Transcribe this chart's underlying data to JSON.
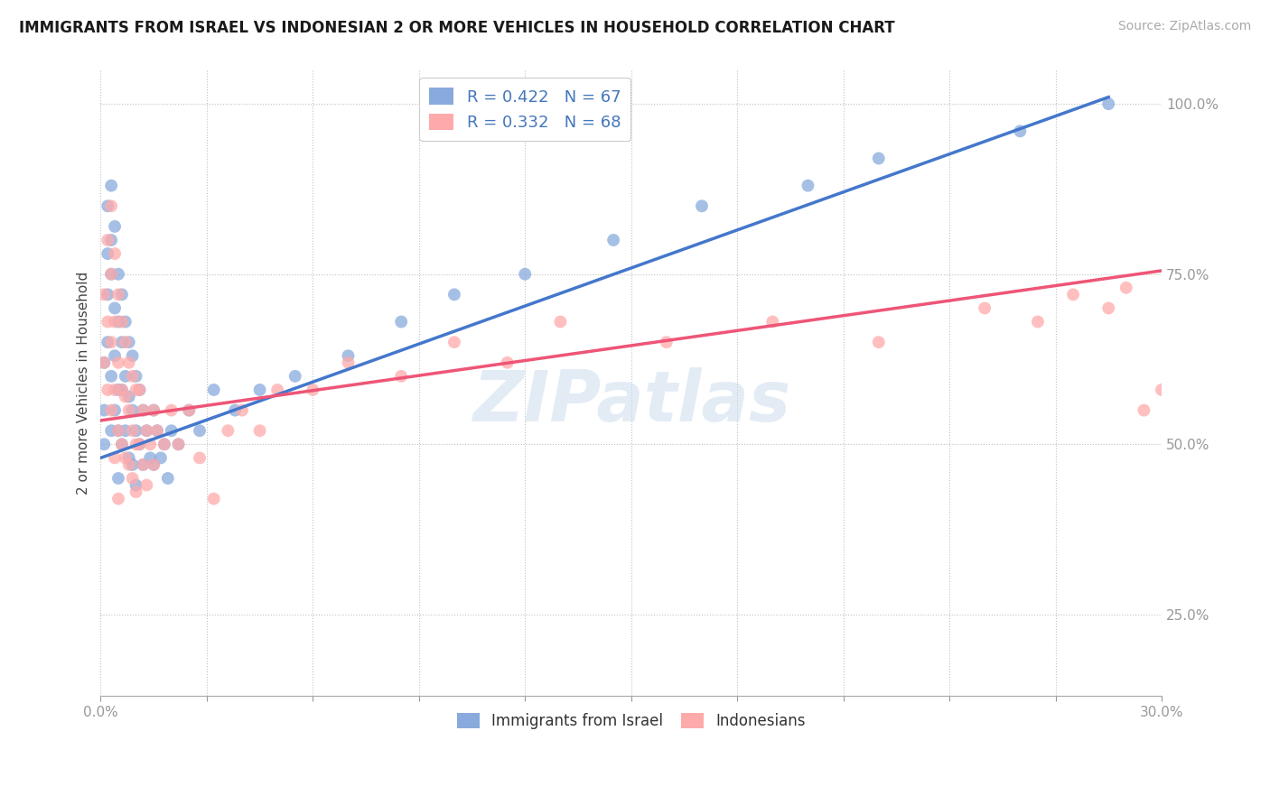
{
  "title": "IMMIGRANTS FROM ISRAEL VS INDONESIAN 2 OR MORE VEHICLES IN HOUSEHOLD CORRELATION CHART",
  "source": "Source: ZipAtlas.com",
  "ylabel": "2 or more Vehicles in Household",
  "xlim": [
    0.0,
    0.3
  ],
  "ylim": [
    0.13,
    1.05
  ],
  "xticks": [
    0.0,
    0.03,
    0.06,
    0.09,
    0.12,
    0.15,
    0.18,
    0.21,
    0.24,
    0.27,
    0.3
  ],
  "xticklabels": [
    "0.0%",
    "",
    "",
    "",
    "",
    "",
    "",
    "",
    "",
    "",
    "30.0%"
  ],
  "ytick_positions": [
    0.25,
    0.5,
    0.75,
    1.0
  ],
  "ytick_labels": [
    "25.0%",
    "50.0%",
    "75.0%",
    "100.0%"
  ],
  "legend_labels": [
    "Immigrants from Israel",
    "Indonesians"
  ],
  "R_israel": 0.422,
  "N_israel": 67,
  "R_indonesian": 0.332,
  "N_indonesian": 68,
  "blue_color": "#88AADD",
  "pink_color": "#FFAAAA",
  "trend_blue": "#4477CC",
  "trend_pink": "#EE5577",
  "watermark": "ZIPatlas",
  "israel_x": [
    0.001,
    0.001,
    0.001,
    0.002,
    0.002,
    0.002,
    0.002,
    0.003,
    0.003,
    0.003,
    0.003,
    0.003,
    0.004,
    0.004,
    0.004,
    0.004,
    0.005,
    0.005,
    0.005,
    0.005,
    0.005,
    0.006,
    0.006,
    0.006,
    0.006,
    0.007,
    0.007,
    0.007,
    0.008,
    0.008,
    0.008,
    0.009,
    0.009,
    0.009,
    0.01,
    0.01,
    0.01,
    0.011,
    0.011,
    0.012,
    0.012,
    0.013,
    0.014,
    0.015,
    0.015,
    0.016,
    0.017,
    0.018,
    0.019,
    0.02,
    0.022,
    0.025,
    0.028,
    0.032,
    0.038,
    0.045,
    0.055,
    0.07,
    0.085,
    0.1,
    0.12,
    0.145,
    0.17,
    0.2,
    0.22,
    0.26,
    0.285
  ],
  "israel_y": [
    0.55,
    0.62,
    0.5,
    0.85,
    0.78,
    0.72,
    0.65,
    0.88,
    0.8,
    0.75,
    0.6,
    0.52,
    0.82,
    0.7,
    0.63,
    0.55,
    0.75,
    0.68,
    0.58,
    0.52,
    0.45,
    0.72,
    0.65,
    0.58,
    0.5,
    0.68,
    0.6,
    0.52,
    0.65,
    0.57,
    0.48,
    0.63,
    0.55,
    0.47,
    0.6,
    0.52,
    0.44,
    0.58,
    0.5,
    0.55,
    0.47,
    0.52,
    0.48,
    0.55,
    0.47,
    0.52,
    0.48,
    0.5,
    0.45,
    0.52,
    0.5,
    0.55,
    0.52,
    0.58,
    0.55,
    0.58,
    0.6,
    0.63,
    0.68,
    0.72,
    0.75,
    0.8,
    0.85,
    0.88,
    0.92,
    0.96,
    1.0
  ],
  "indonesian_x": [
    0.001,
    0.001,
    0.002,
    0.002,
    0.002,
    0.003,
    0.003,
    0.003,
    0.003,
    0.004,
    0.004,
    0.004,
    0.004,
    0.005,
    0.005,
    0.005,
    0.005,
    0.006,
    0.006,
    0.006,
    0.007,
    0.007,
    0.007,
    0.008,
    0.008,
    0.008,
    0.009,
    0.009,
    0.009,
    0.01,
    0.01,
    0.01,
    0.011,
    0.011,
    0.012,
    0.012,
    0.013,
    0.013,
    0.014,
    0.015,
    0.015,
    0.016,
    0.018,
    0.02,
    0.022,
    0.025,
    0.028,
    0.032,
    0.036,
    0.04,
    0.045,
    0.05,
    0.06,
    0.07,
    0.085,
    0.1,
    0.115,
    0.13,
    0.16,
    0.19,
    0.22,
    0.25,
    0.265,
    0.275,
    0.285,
    0.29,
    0.295,
    0.3
  ],
  "indonesian_y": [
    0.72,
    0.62,
    0.8,
    0.68,
    0.58,
    0.85,
    0.75,
    0.65,
    0.55,
    0.78,
    0.68,
    0.58,
    0.48,
    0.72,
    0.62,
    0.52,
    0.42,
    0.68,
    0.58,
    0.5,
    0.65,
    0.57,
    0.48,
    0.62,
    0.55,
    0.47,
    0.6,
    0.52,
    0.45,
    0.58,
    0.5,
    0.43,
    0.58,
    0.5,
    0.55,
    0.47,
    0.52,
    0.44,
    0.5,
    0.55,
    0.47,
    0.52,
    0.5,
    0.55,
    0.5,
    0.55,
    0.48,
    0.42,
    0.52,
    0.55,
    0.52,
    0.58,
    0.58,
    0.62,
    0.6,
    0.65,
    0.62,
    0.68,
    0.65,
    0.68,
    0.65,
    0.7,
    0.68,
    0.72,
    0.7,
    0.73,
    0.55,
    0.58
  ],
  "trend_blue_points": [
    [
      0.0,
      0.48
    ],
    [
      0.285,
      1.01
    ]
  ],
  "trend_pink_points": [
    [
      0.0,
      0.535
    ],
    [
      0.3,
      0.755
    ]
  ]
}
